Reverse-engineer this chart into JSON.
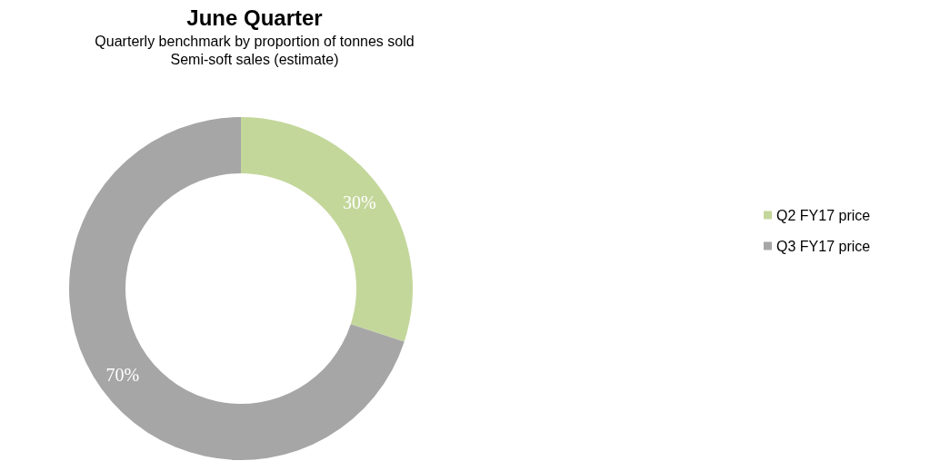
{
  "chart_data": {
    "type": "donut",
    "title": "June Quarter",
    "subtitle": "Quarterly benchmark by proportion of tonnes sold\nSemi-soft sales (estimate)",
    "categories": [
      "Q2 FY17 price",
      "Q3 FY17 price"
    ],
    "values": [
      30,
      70
    ],
    "colors": [
      "#c4d79b",
      "#a6a6a6"
    ],
    "value_labels": [
      "30%",
      "70%"
    ],
    "legend": "right"
  }
}
